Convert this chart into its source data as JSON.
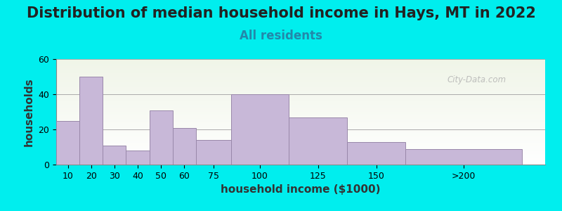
{
  "title": "Distribution of median household income in Hays, MT in 2022",
  "subtitle": "All residents",
  "xlabel": "household income ($1000)",
  "ylabel": "households",
  "background_color": "#00EEEE",
  "plot_bg_top": "#f0f5e8",
  "plot_bg_bottom": "#ffffff",
  "bar_color": "#c8b8d8",
  "bar_edge_color": "#9988aa",
  "categories": [
    "10",
    "20",
    "30",
    "40",
    "50",
    "60",
    "75",
    "100",
    "125",
    "150",
    ">200"
  ],
  "values": [
    25,
    50,
    11,
    8,
    31,
    21,
    14,
    40,
    27,
    13,
    9
  ],
  "ylim": [
    0,
    60
  ],
  "yticks": [
    0,
    20,
    40,
    60
  ],
  "title_fontsize": 15,
  "subtitle_fontsize": 12,
  "axis_label_fontsize": 11,
  "watermark": "City-Data.com",
  "left_edges": [
    0,
    10,
    20,
    30,
    40,
    50,
    60,
    75,
    100,
    125,
    150
  ],
  "widths": [
    10,
    10,
    10,
    10,
    10,
    10,
    15,
    25,
    25,
    25,
    50
  ],
  "xlim": [
    0,
    210
  ]
}
